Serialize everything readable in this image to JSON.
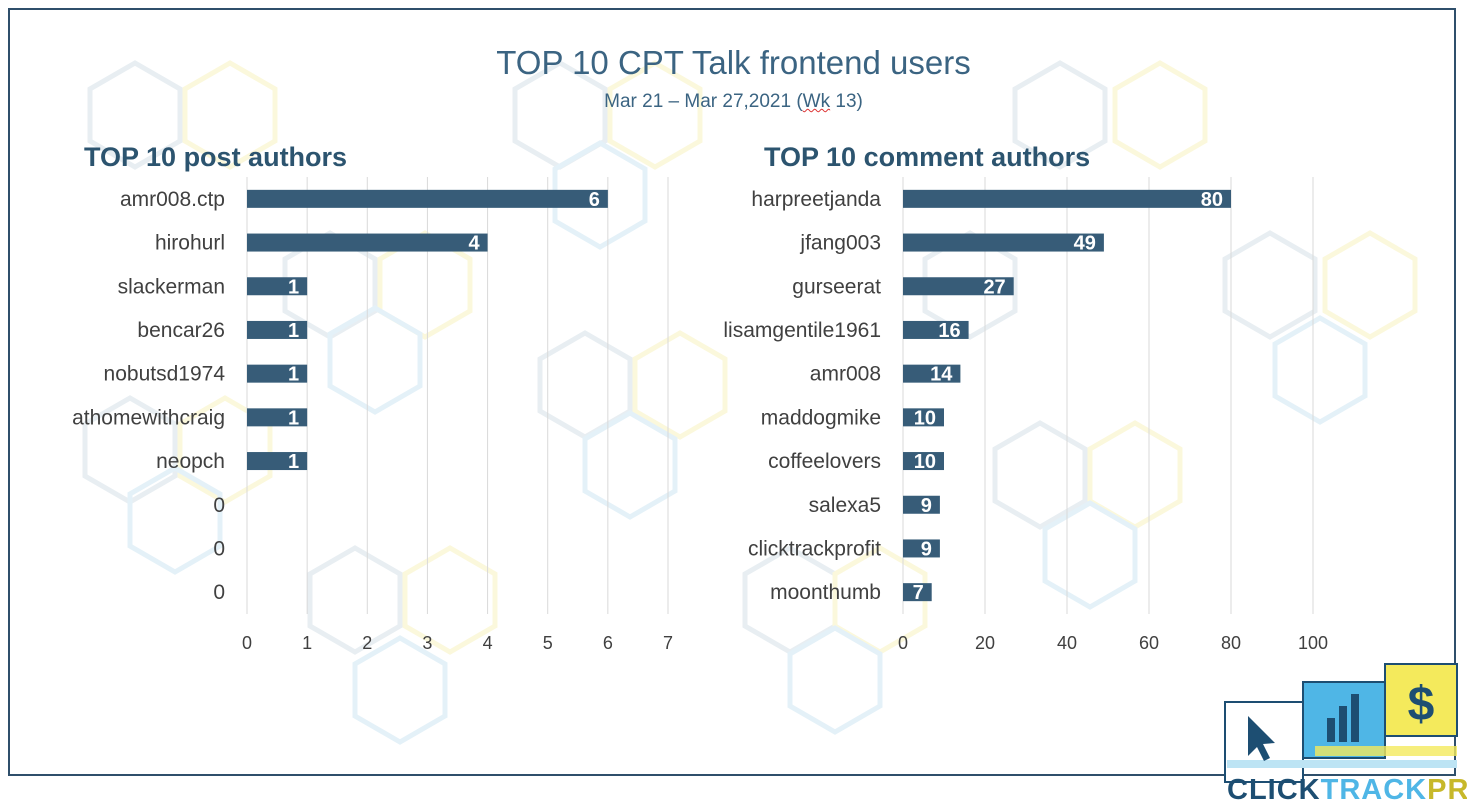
{
  "header": {
    "title": "TOP 10 CPT Talk frontend users",
    "subtitle_main": "Mar 21 – Mar 27,2021 (",
    "subtitle_wk": "Wk",
    "subtitle_end": " 13)"
  },
  "chart_data": [
    {
      "type": "bar",
      "orientation": "horizontal",
      "title": "TOP 10 post authors",
      "categories": [
        "amr008.ctp",
        "hirohurl",
        "slackerman",
        "bencar26",
        "nobutsd1974",
        "athomewithcraig",
        "neopch",
        "0",
        "0",
        "0"
      ],
      "values": [
        6,
        4,
        1,
        1,
        1,
        1,
        1,
        null,
        null,
        null
      ],
      "xlim": [
        0,
        7
      ],
      "xticks": [
        0,
        1,
        2,
        3,
        4,
        5,
        6,
        7
      ],
      "grid": true
    },
    {
      "type": "bar",
      "orientation": "horizontal",
      "title": "TOP 10 comment authors",
      "categories": [
        "harpreetjanda",
        "jfang003",
        "gurseerat",
        "lisamgentile1961",
        "amr008",
        "maddogmike",
        "coffeelovers",
        "salexa5",
        "clicktrackprofit",
        "moonthumb"
      ],
      "values": [
        80,
        49,
        27,
        16,
        14,
        10,
        10,
        9,
        9,
        7
      ],
      "xlim": [
        0,
        100
      ],
      "xticks": [
        0,
        20,
        40,
        60,
        80,
        100
      ],
      "grid": true
    }
  ],
  "colors": {
    "bar": "#375c78",
    "grid": "#d9d9d9",
    "title": "#3b6482",
    "chart_title": "#2c546f"
  },
  "logo": {
    "text_part1": "CLICK",
    "text_part2": "TRACK",
    "text_part3": "PROFIT",
    "icons": [
      "cursor-icon",
      "bar-chart-icon",
      "dollar-icon"
    ]
  }
}
